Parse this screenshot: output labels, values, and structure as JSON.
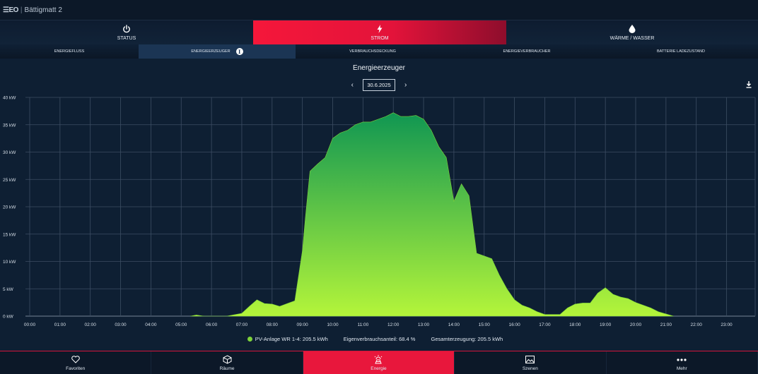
{
  "app": {
    "logo": "☰EO",
    "title": "Bättigmatt 2"
  },
  "main_tabs": [
    {
      "label": "STATUS",
      "icon": "power-icon",
      "active": false
    },
    {
      "label": "STROM",
      "icon": "lightning-icon",
      "active": true
    },
    {
      "label": "WÄRME / WASSER",
      "icon": "drop-icon",
      "active": false
    }
  ],
  "sub_tabs": [
    {
      "label": "ENERGIEFLUSS",
      "active": false
    },
    {
      "label": "ENERGIEERZEUGER",
      "active": true
    },
    {
      "label": "VERBRAUCHSDECKUNG",
      "active": false
    },
    {
      "label": "ENERGIEVERBRAUCHER",
      "active": false
    },
    {
      "label": "BATTERIE LADEZUSTAND",
      "active": false
    }
  ],
  "info_glyph": "i",
  "chart_header": {
    "title": "Energieerzeuger",
    "date": "30.6.2025",
    "prev": "‹",
    "next": "›"
  },
  "legend": {
    "series_label": "PV-Anlage WR 1-4: 205.5 kWh",
    "self_consumption": "Eigenverbrauchsanteil: 68.4 %",
    "total": "Gesamterzeugung: 205.5 kWh"
  },
  "colors": {
    "accent": "#e8173c",
    "area_top": "#109652",
    "area_bottom": "#b4f53a",
    "legend_dot": "#7ed33a"
  },
  "chart_data": {
    "type": "area",
    "title": "Energieerzeuger",
    "ylim": [
      0,
      40
    ],
    "y_ticks": [
      "0 kW",
      "5 kW",
      "10 kW",
      "15 kW",
      "20 kW",
      "25 kW",
      "30 kW",
      "35 kW",
      "40 kW"
    ],
    "x_ticks": [
      "00:00",
      "01:00",
      "02:00",
      "03:00",
      "04:00",
      "05:00",
      "06:00",
      "07:00",
      "08:00",
      "09:00",
      "10:00",
      "11:00",
      "12:00",
      "13:00",
      "14:00",
      "15:00",
      "16:00",
      "17:00",
      "18:00",
      "19:00",
      "20:00",
      "21:00",
      "22:00",
      "23:00"
    ],
    "grid": true,
    "series": [
      {
        "name": "PV-Anlage WR 1-4",
        "x": [
          5.3,
          5.5,
          5.75,
          6.0,
          6.5,
          7.0,
          7.25,
          7.5,
          7.75,
          8.0,
          8.25,
          8.5,
          8.75,
          9.0,
          9.1,
          9.25,
          9.5,
          9.75,
          10.0,
          10.25,
          10.5,
          10.75,
          11.0,
          11.25,
          11.5,
          11.75,
          12.0,
          12.25,
          12.5,
          12.75,
          13.0,
          13.25,
          13.5,
          13.75,
          14.0,
          14.25,
          14.5,
          14.75,
          15.0,
          15.25,
          15.5,
          15.75,
          16.0,
          16.25,
          16.5,
          16.75,
          17.0,
          17.25,
          17.5,
          17.75,
          18.0,
          18.25,
          18.5,
          18.75,
          19.0,
          19.25,
          19.5,
          19.75,
          20.0,
          20.25,
          20.5,
          20.75,
          21.0,
          21.25
        ],
        "values": [
          0,
          0.2,
          0,
          0,
          0,
          0.5,
          1.8,
          3.0,
          2.3,
          2.2,
          1.8,
          2.3,
          2.8,
          12,
          18,
          26.5,
          27.8,
          29,
          32.5,
          33.5,
          34,
          35,
          35.5,
          35.5,
          36,
          36.5,
          37.2,
          36.5,
          36.5,
          36.7,
          36,
          34,
          31,
          29,
          21,
          24.2,
          22,
          11.5,
          11,
          10.5,
          7.5,
          5,
          3,
          2,
          1.5,
          0.8,
          0.3,
          0.3,
          0.3,
          1.5,
          2.2,
          2.4,
          2.4,
          4.2,
          5.2,
          4,
          3.5,
          3.2,
          2.5,
          2,
          1.5,
          0.8,
          0.4,
          0
        ]
      }
    ]
  },
  "bottom_nav": [
    {
      "label": "Favoriten",
      "icon": "heart-icon",
      "active": false
    },
    {
      "label": "Räume",
      "icon": "cube-icon",
      "active": false
    },
    {
      "label": "Energie",
      "icon": "energy-icon",
      "active": true
    },
    {
      "label": "Szenen",
      "icon": "picture-icon",
      "active": false
    },
    {
      "label": "Mehr",
      "icon": "more-dots-icon",
      "active": false
    }
  ]
}
